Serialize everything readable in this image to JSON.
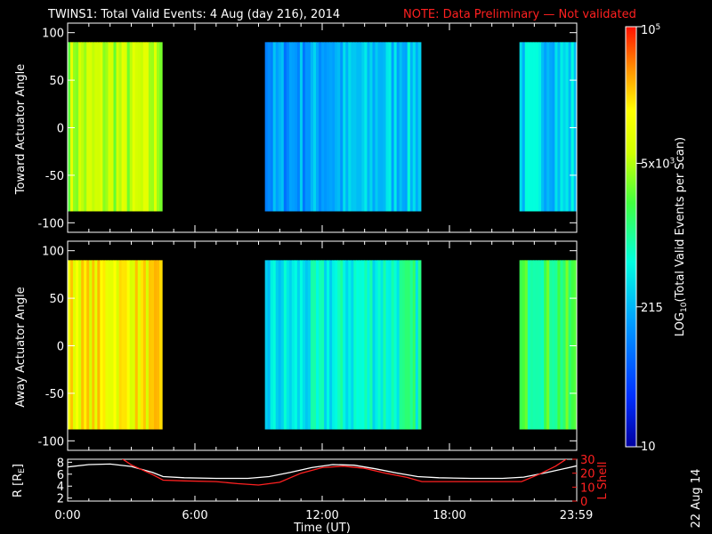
{
  "title": {
    "main": "TWINS1: Total Valid Events:  4 Aug (day 216), 2014",
    "note": "NOTE: Data Preliminary — Not validated",
    "note_color": "#ff2020"
  },
  "footer_date": "22 Aug 14",
  "chart_data": [
    {
      "type": "heatmap",
      "name": "toward",
      "ylabel": "Toward Actuator Angle",
      "ylim": [
        -110,
        110
      ],
      "yticks": [
        "100",
        "50",
        "0",
        "-50",
        "-100"
      ],
      "ytick_values": [
        100,
        50,
        0,
        -50,
        -100
      ],
      "x_range_hours": [
        0,
        24
      ],
      "angle_range": [
        -88,
        90
      ],
      "data_intervals_hours": [
        [
          0,
          4.45
        ],
        [
          9.3,
          16.65
        ],
        [
          21.3,
          23.99
        ]
      ],
      "segment_levels": [
        0.68,
        0.28,
        0.38
      ]
    },
    {
      "type": "heatmap",
      "name": "away",
      "ylabel": "Away Actuator Angle",
      "ylim": [
        -110,
        110
      ],
      "yticks": [
        "100",
        "50",
        "0",
        "-50",
        "-100"
      ],
      "ytick_values": [
        100,
        50,
        0,
        -50,
        -100
      ],
      "x_range_hours": [
        0,
        24
      ],
      "angle_range": [
        -88,
        90
      ],
      "data_intervals_hours": [
        [
          0,
          4.45
        ],
        [
          9.3,
          16.65
        ],
        [
          21.3,
          23.99
        ]
      ],
      "segment_levels": [
        0.79,
        0.38,
        0.55
      ]
    },
    {
      "type": "line",
      "name": "orbit",
      "ylabel_left": "R [R",
      "ylabel_left_sub": "E",
      "ylabel_left_end": "]",
      "ylabel_right": "L Shell",
      "left_ylim": [
        1.5,
        8.5
      ],
      "right_ylim": [
        0,
        30
      ],
      "left_ticks": [
        "8",
        "6",
        "4",
        "2"
      ],
      "left_tick_values": [
        8,
        6,
        4,
        2
      ],
      "right_ticks": [
        "30",
        "20",
        "10",
        "0"
      ],
      "right_tick_values": [
        30,
        20,
        10,
        0
      ],
      "xlabel": "Time (UT)",
      "xticks": [
        "0:00",
        "6:00",
        "12:00",
        "18:00",
        "23:59"
      ],
      "xtick_values": [
        0,
        6,
        12,
        18,
        23.98
      ],
      "series": [
        {
          "name": "R",
          "color": "#ffffff",
          "x": [
            0,
            1,
            2,
            3,
            4,
            4.5,
            5.5,
            7,
            8.5,
            9.5,
            10.5,
            11.5,
            12.5,
            13.5,
            14.5,
            15.5,
            16.5,
            17.5,
            19,
            20.5,
            21.5,
            22.5,
            23.5,
            24
          ],
          "y": [
            7.2,
            7.6,
            7.7,
            7.3,
            6.3,
            5.6,
            5.4,
            5.3,
            5.3,
            5.6,
            6.3,
            7.1,
            7.6,
            7.5,
            6.9,
            6.2,
            5.6,
            5.4,
            5.3,
            5.3,
            5.5,
            6.2,
            7.0,
            7.4
          ]
        },
        {
          "name": "L Shell",
          "color": "#ff2020",
          "x": [
            2.5,
            3,
            4,
            4.5,
            5.5,
            7,
            8,
            9,
            10,
            11,
            12,
            13,
            14,
            15,
            16,
            16.7,
            18,
            20,
            21.4,
            22.2,
            23,
            23.6
          ],
          "y": [
            31,
            26,
            19,
            15,
            14.5,
            14,
            12.5,
            11.5,
            13.5,
            20,
            24,
            25,
            23.5,
            20,
            17,
            14,
            14,
            14,
            14,
            19,
            25,
            31
          ]
        }
      ]
    },
    {
      "type": "colorbar",
      "name": "colorbar",
      "label": "LOG",
      "label_sub": "10",
      "label_end": "(Total Valid  Events per Scan)",
      "scale_min": 10,
      "scale_max": 100000,
      "ticks": [
        {
          "label": "10",
          "value": 10
        },
        {
          "label": "215",
          "value": 215
        },
        {
          "label": "5x10",
          "sup": "3",
          "value": 5000
        },
        {
          "label": "10",
          "sup": "5",
          "value": 100000
        }
      ]
    }
  ]
}
